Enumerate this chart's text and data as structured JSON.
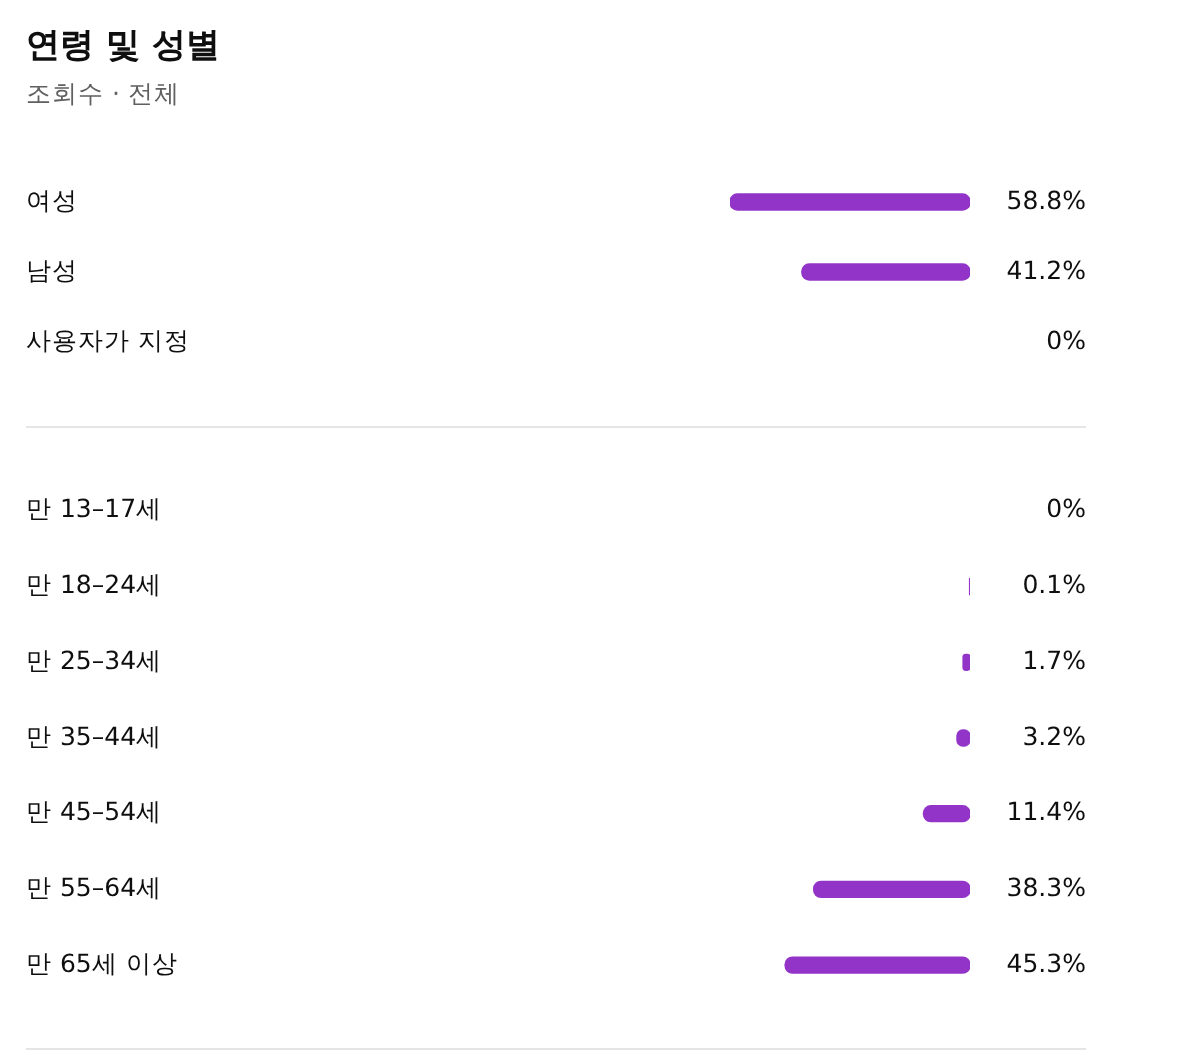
{
  "chart_data": [
    {
      "type": "bar",
      "title": "연령 및 성별",
      "subtitle": "조회수 · 전체",
      "orientation": "horizontal",
      "categories": [
        "여성",
        "남성",
        "사용자가 지정"
      ],
      "series": [
        {
          "color": "#9334c9",
          "values": [
            58.8,
            41.2,
            0
          ],
          "value_labels": [
            "58.8%",
            "41.2%",
            "0%"
          ]
        }
      ],
      "tick_labels": "y",
      "grid": false,
      "legend": false
    },
    {
      "type": "bar",
      "orientation": "horizontal",
      "categories": [
        "만 13–17세",
        "만 18–24세",
        "만 25–34세",
        "만 35–44세",
        "만 45–54세",
        "만 55–64세",
        "만 65세 이상"
      ],
      "series": [
        {
          "color": "#9334c9",
          "values": [
            0,
            0.1,
            1.7,
            3.2,
            11.4,
            38.3,
            45.3
          ],
          "value_labels": [
            "0%",
            "0.1%",
            "1.7%",
            "3.2%",
            "11.4%",
            "38.3%",
            "45.3%"
          ]
        }
      ],
      "tick_labels": "y",
      "grid": false,
      "legend": false
    }
  ]
}
